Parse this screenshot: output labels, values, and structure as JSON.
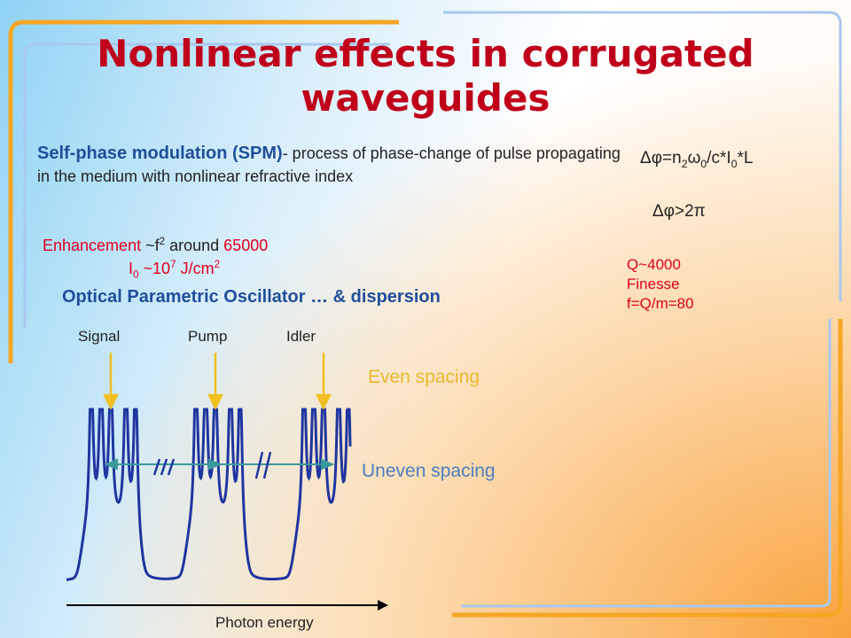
{
  "title": "Nonlinear effects in corrugated waveguides",
  "spm": {
    "term": "Self-phase modulation (SPM)",
    "definition": "- process of phase-change of pulse propagating in the medium with nonlinear refractive index"
  },
  "formula": {
    "parts": [
      "Δφ=n",
      "2",
      "ω",
      "0",
      "/c*I",
      "0",
      "*L"
    ]
  },
  "condition": "Δφ>2π",
  "enhancement": {
    "line1": [
      "Enhancement",
      " ~f",
      "2",
      " around ",
      "65000"
    ],
    "line2": [
      "I",
      "0",
      " ~10",
      "7",
      " J/cm",
      "2"
    ]
  },
  "quality": [
    "Q~4000",
    "Finesse",
    "f=Q/m=80"
  ],
  "opo_heading": "Optical Parametric Oscillator …  & dispersion",
  "diagram": {
    "signal": "Signal",
    "pump": "Pump",
    "idler": "Idler",
    "even": "Even spacing",
    "uneven": "Uneven spacing",
    "axis": "Photon energy"
  }
}
